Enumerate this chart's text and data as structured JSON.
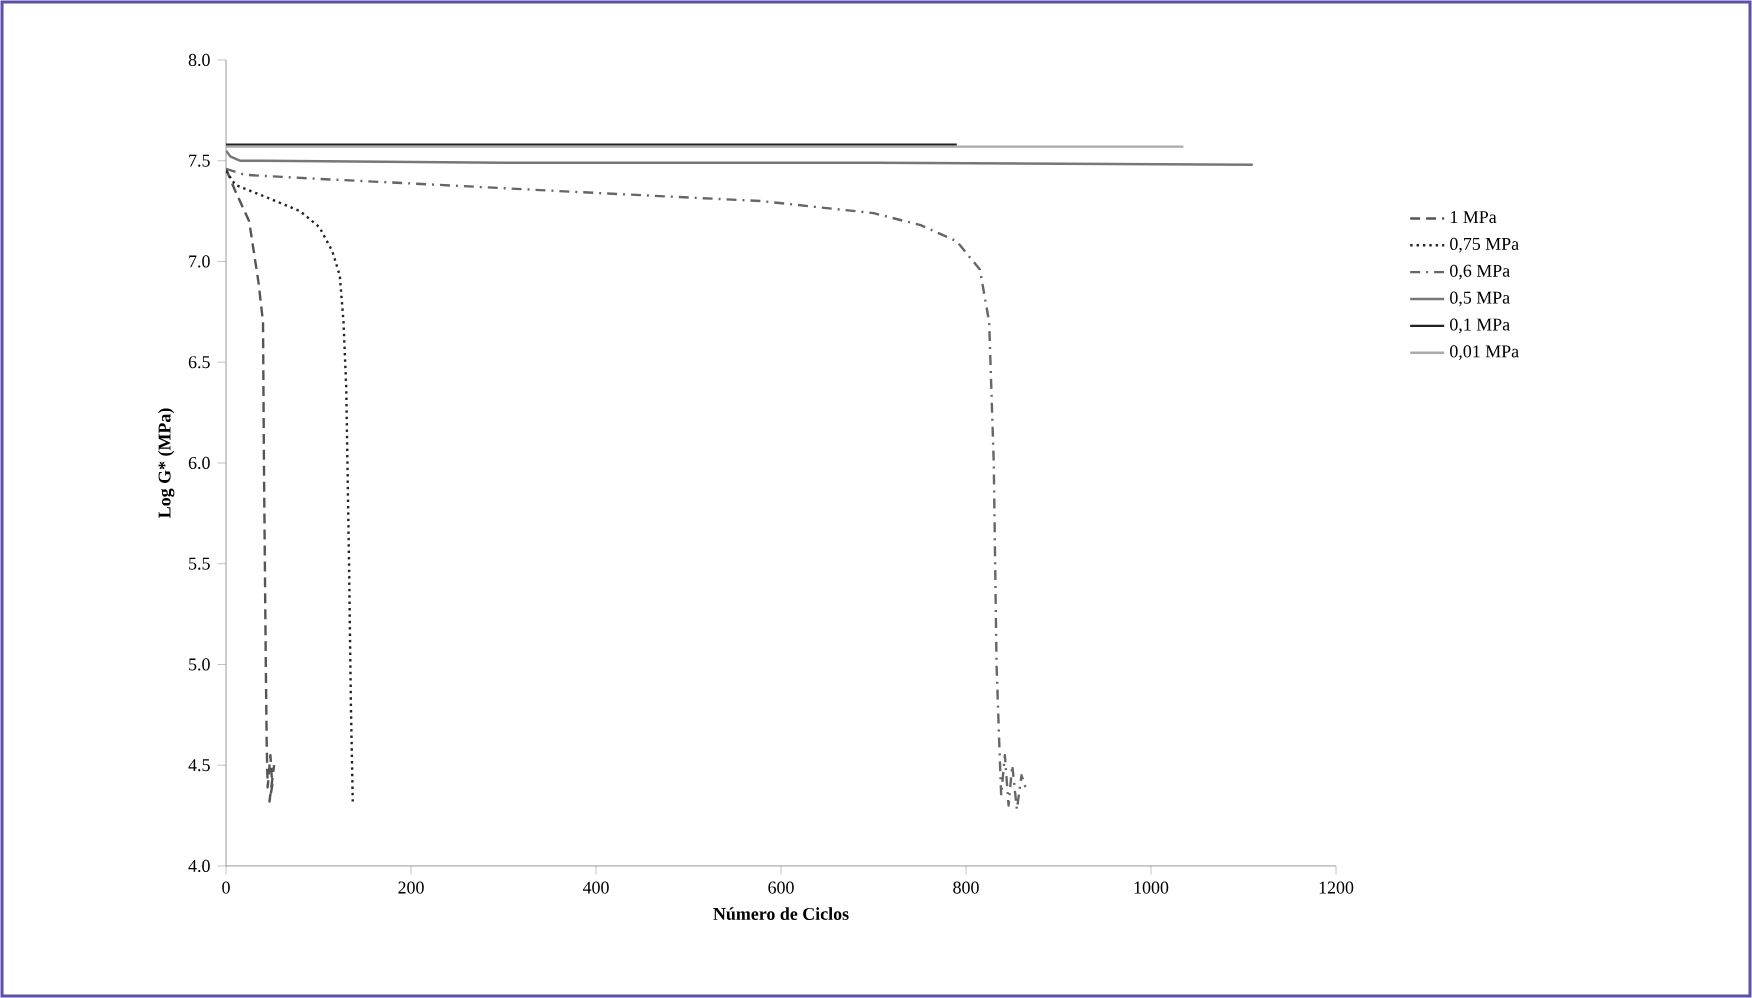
{
  "chart_data": {
    "type": "line",
    "xlabel": "Número de Ciclos",
    "ylabel": "Log G* (MPa)",
    "xlim": [
      0,
      1200
    ],
    "xticks": [
      0,
      200,
      400,
      600,
      800,
      1000,
      1200
    ],
    "ylim": [
      4,
      8
    ],
    "yticks": [
      {
        "value": 4,
        "label": "4.0"
      },
      {
        "value": 4.5,
        "label": "4.5"
      },
      {
        "value": 5,
        "label": "5.0"
      },
      {
        "value": 5.5,
        "label": "5.5"
      },
      {
        "value": 6,
        "label": "6.0"
      },
      {
        "value": 6.5,
        "label": "6.5"
      },
      {
        "value": 7,
        "label": "7.0"
      },
      {
        "value": 7.5,
        "label": "7.5"
      },
      {
        "value": 8,
        "label": "8.0"
      }
    ],
    "legend": "right",
    "grid": false,
    "series": [
      {
        "name": "1 MPa",
        "color": "#555555",
        "line_style": "dashed",
        "x": [
          0,
          10,
          25,
          35,
          40,
          41,
          42,
          43,
          44,
          45,
          48,
          50,
          47,
          52
        ],
        "values": [
          7.46,
          7.35,
          7.2,
          6.9,
          6.7,
          6.0,
          5.5,
          5.0,
          4.6,
          4.39,
          4.55,
          4.4,
          4.32,
          4.5
        ]
      },
      {
        "name": "0,75 MPa",
        "color": "#222222",
        "line_style": "dotted",
        "x": [
          0,
          10,
          43,
          80,
          101,
          115,
          123,
          127,
          130,
          133,
          135,
          137
        ],
        "values": [
          7.45,
          7.38,
          7.32,
          7.25,
          7.17,
          7.05,
          6.93,
          6.7,
          6.37,
          5.5,
          4.8,
          4.32
        ]
      },
      {
        "name": "0,6 MPa",
        "color": "#666666",
        "line_style": "dashdot",
        "x": [
          0,
          20,
          100,
          231,
          400,
          578,
          700,
          751,
          790,
          815,
          825,
          830,
          833,
          836,
          838,
          842,
          846,
          850,
          855,
          860,
          865
        ],
        "values": [
          7.46,
          7.43,
          7.41,
          7.38,
          7.34,
          7.3,
          7.24,
          7.18,
          7.1,
          6.96,
          6.7,
          6.0,
          5.0,
          4.6,
          4.35,
          4.55,
          4.3,
          4.5,
          4.28,
          4.45,
          4.38
        ]
      },
      {
        "name": "0,5 MPa",
        "color": "#777777",
        "line_style": "solid",
        "x": [
          0,
          5,
          15,
          40,
          300,
          700,
          1110
        ],
        "values": [
          7.55,
          7.52,
          7.5,
          7.5,
          7.49,
          7.49,
          7.48
        ]
      },
      {
        "name": "0,1 MPa",
        "color": "#222222",
        "line_style": "solid",
        "x": [
          0,
          200,
          500,
          790
        ],
        "values": [
          7.58,
          7.58,
          7.58,
          7.58
        ]
      },
      {
        "name": "0,01 MPa",
        "color": "#aaaaaa",
        "line_style": "solid",
        "x": [
          0,
          300,
          700,
          1035
        ],
        "values": [
          7.57,
          7.57,
          7.57,
          7.57
        ]
      }
    ]
  }
}
